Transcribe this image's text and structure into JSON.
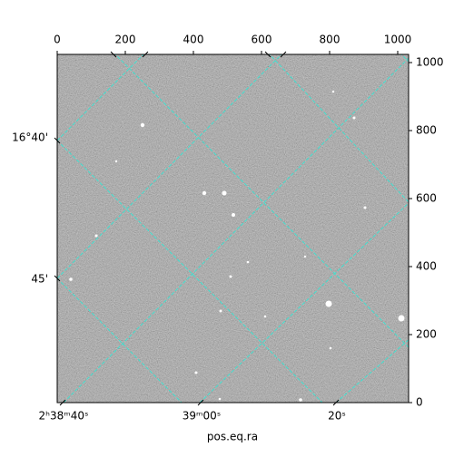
{
  "chart_data": {
    "type": "image",
    "xlabel": "pos.eq.ra",
    "xlim": [
      0,
      1032
    ],
    "ylim": [
      0,
      1024
    ],
    "xticks": [
      0,
      200,
      400,
      600,
      800,
      1000
    ],
    "yticks": [
      0,
      200,
      400,
      600,
      800,
      1000
    ],
    "ra_labels": [
      "2ʰ38ᵐ40ˢ",
      "39ᵐ00ˢ",
      "20ˢ"
    ],
    "dec_labels": [
      "16°40'",
      "45'"
    ],
    "grid_color": "#40e0d0"
  }
}
